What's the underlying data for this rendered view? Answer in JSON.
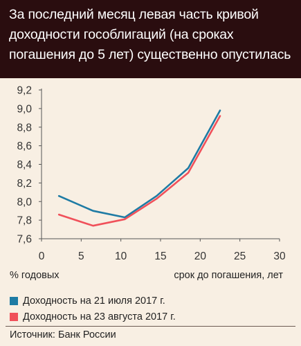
{
  "title": "За последний месяц левая часть кривой доходности гособлигаций (на сроках погашения до 5 лет) существенно опустилась",
  "source": "Источник: Банк России",
  "chart_data": {
    "type": "line",
    "title": "За последний месяц левая часть кривой доходности гособлигаций (на сроках погашения до 5 лет) существенно опустилась",
    "ylabel": "% годовых",
    "xlabel": "срок до погашения, лет",
    "xlim": [
      0,
      30
    ],
    "ylim": [
      7.6,
      9.2
    ],
    "xticks": [
      "0",
      "5",
      "10",
      "15",
      "20",
      "25",
      "30"
    ],
    "yticks": [
      "7,6",
      "7,8",
      "8,0",
      "8,2",
      "8,4",
      "8,6",
      "8,8",
      "9,0",
      "9,2"
    ],
    "grid": false,
    "legend_position": "bottom-left",
    "series": [
      {
        "name": "Доходность на 21 июля 2017 г.",
        "color": "#1e7ba4",
        "x": [
          2.2,
          6.5,
          10.5,
          14.5,
          18.5,
          22.5
        ],
        "y": [
          8.06,
          7.9,
          7.83,
          8.06,
          8.36,
          8.98
        ]
      },
      {
        "name": "Доходность на 23 августа 2017 г.",
        "color": "#f0505a",
        "x": [
          2.2,
          6.5,
          10.5,
          14.5,
          18.5,
          22.5
        ],
        "y": [
          7.86,
          7.74,
          7.81,
          8.03,
          8.31,
          8.92
        ]
      }
    ]
  }
}
